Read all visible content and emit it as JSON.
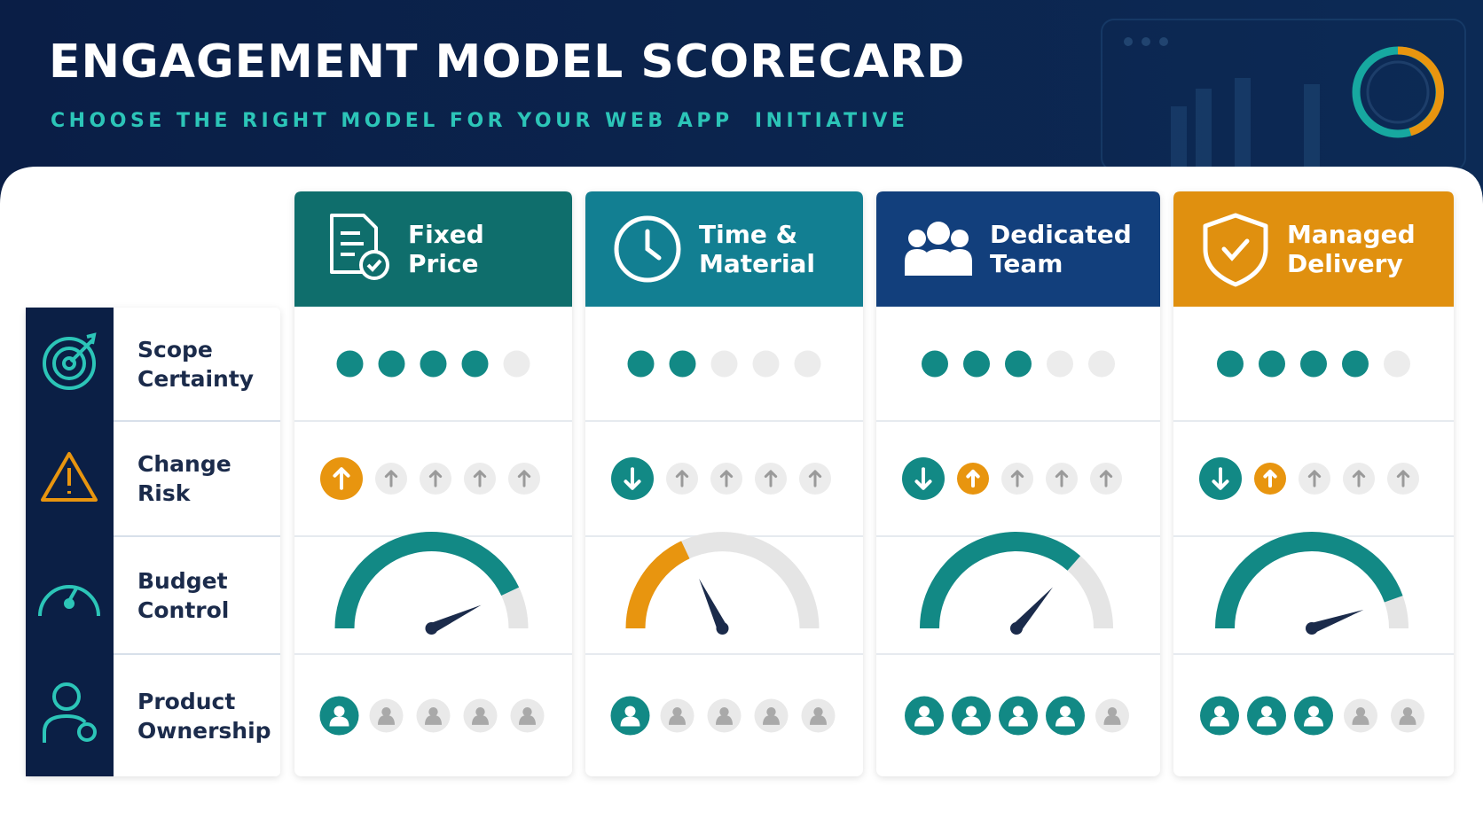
{
  "header": {
    "title": "ENGAGEMENT MODEL SCORECARD",
    "subtitle": "CHOOSE THE RIGHT MODEL FOR YOUR WEB APP  INITIATIVE"
  },
  "criteria": [
    "Scope Certainty",
    "Change Risk",
    "Budget Control",
    "Product Ownership"
  ],
  "dots_per_row": 5,
  "models": [
    {
      "name": "Fixed Price",
      "color": "#0f6e6c",
      "scope_certainty": 4,
      "change_risk": [
        "high",
        "off",
        "off",
        "off",
        "off"
      ],
      "budget_control": 0.86,
      "gauge_color": "#128985",
      "product_ownership": 1
    },
    {
      "name": "Time & Material",
      "color": "#127f92",
      "scope_certainty": 2,
      "change_risk": [
        "low",
        "off",
        "off",
        "off",
        "off"
      ],
      "budget_control": 0.36,
      "gauge_color": "#e8950f",
      "product_ownership": 1
    },
    {
      "name": "Dedicated Team",
      "color": "#123f7c",
      "scope_certainty": 3,
      "change_risk": [
        "low",
        "high",
        "off",
        "off",
        "off"
      ],
      "budget_control": 0.73,
      "gauge_color": "#128985",
      "product_ownership": 4
    },
    {
      "name": "Managed Delivery",
      "color": "#e0900f",
      "scope_certainty": 4,
      "change_risk": [
        "low",
        "high",
        "off",
        "off",
        "off"
      ],
      "budget_control": 0.89,
      "gauge_color": "#128985",
      "product_ownership": 3
    }
  ]
}
